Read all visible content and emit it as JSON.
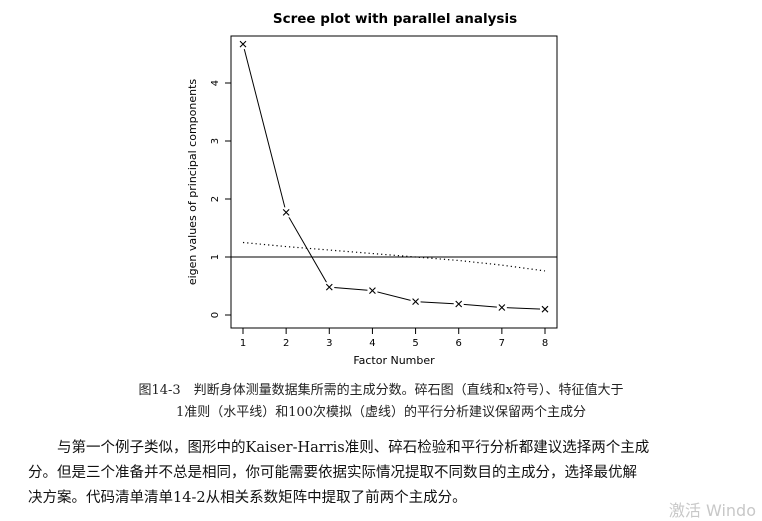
{
  "chart_data": {
    "type": "line",
    "title": "Scree plot with parallel analysis",
    "xlabel": "Factor Number",
    "ylabel": "eigen values of principal components",
    "x": [
      1,
      2,
      3,
      4,
      5,
      6,
      7,
      8
    ],
    "xticks": [
      "1",
      "2",
      "3",
      "4",
      "5",
      "6",
      "7",
      "8"
    ],
    "yticks": [
      "0",
      "1",
      "2",
      "3",
      "4"
    ],
    "xlim": [
      1,
      8
    ],
    "ylim": [
      0,
      4.7
    ],
    "series": [
      {
        "values": [
          4.67,
          1.77,
          0.48,
          0.42,
          0.23,
          0.19,
          0.13,
          0.1
        ],
        "style": "solid-with-x-markers",
        "color": "#000000"
      },
      {
        "values": [
          1.25,
          1.18,
          1.12,
          1.06,
          1.0,
          0.94,
          0.86,
          0.76
        ],
        "style": "dotted",
        "color": "#000000"
      }
    ],
    "reference_lines": [
      {
        "orientation": "horizontal",
        "y": 1,
        "style": "solid"
      }
    ],
    "grid": false,
    "legend": "none"
  },
  "caption": {
    "line1": "图14-3　判断身体测量数据集所需的主成分数。碎石图（直线和x符号）、特征值大于",
    "line2": "1准则（水平线）和100次模拟（虚线）的平行分析建议保留两个主成分"
  },
  "body": {
    "line1": "与第一个例子类似，图形中的Kaiser-Harris准则、碎石检验和平行分析都建议选择两个主成",
    "line2": "分。但是三个准备并不总是相同，你可能需要依据实际情况提取不同数目的主成分，选择最优解",
    "line3": "决方案。代码清单清单14-2从相关系数矩阵中提取了前两个主成分。"
  },
  "watermark": "激活 Windo"
}
